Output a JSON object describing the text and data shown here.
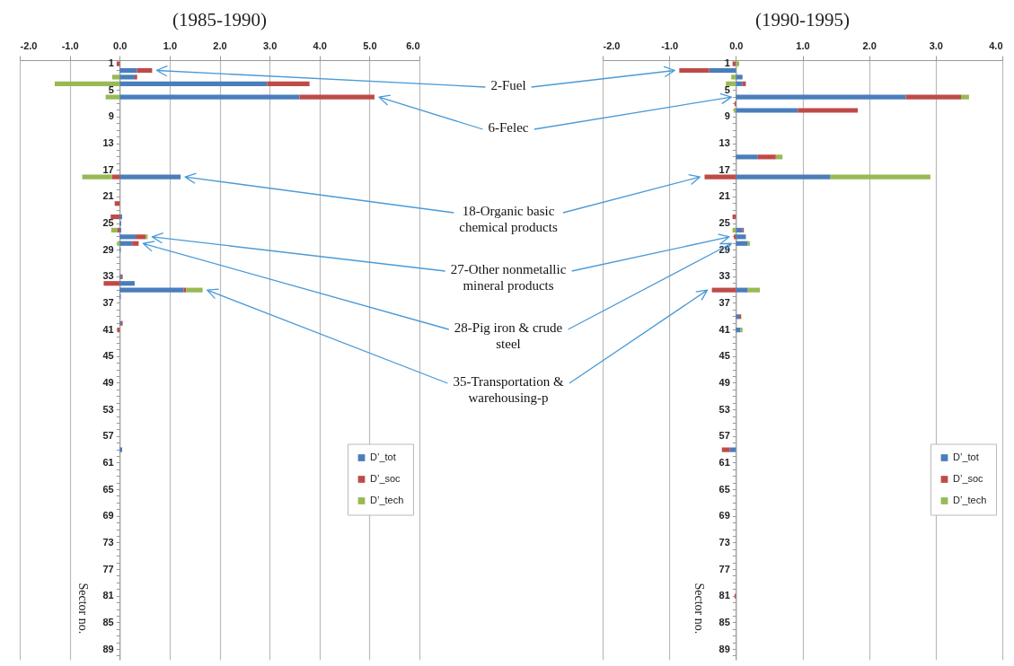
{
  "chart_data": [
    {
      "type": "bar",
      "orientation": "horizontal",
      "stacked": true,
      "title": "(1985-1990)",
      "ylabel": "Sector no.",
      "categories": [
        "1",
        null,
        null,
        null,
        "5",
        null,
        null,
        null,
        "9",
        null,
        null,
        null,
        "13",
        null,
        null,
        null,
        "17",
        null,
        null,
        null,
        "21",
        null,
        null,
        null,
        "25",
        null,
        null,
        null,
        "29",
        null,
        null,
        null,
        "33",
        null,
        null,
        null,
        "37",
        null,
        null,
        null,
        "41",
        null,
        null,
        null,
        "45",
        null,
        null,
        null,
        "49",
        null,
        null,
        null,
        "53",
        null,
        null,
        null,
        "57",
        null,
        null,
        null,
        "61",
        null,
        null,
        null,
        "65",
        null,
        null,
        null,
        "69",
        null,
        null,
        null,
        "73",
        null,
        null,
        null,
        "77",
        null,
        null,
        null,
        "81",
        null,
        null,
        null,
        "85",
        null,
        null,
        null,
        "89",
        null
      ],
      "series": [
        {
          "name": "D’_tot",
          "color": "#4a7ebb",
          "values": [
            null,
            0.35,
            0.3,
            2.95,
            null,
            3.6,
            null,
            null,
            null,
            null,
            null,
            null,
            null,
            null,
            null,
            null,
            null,
            1.22,
            null,
            null,
            null,
            null,
            null,
            0.05,
            0.03,
            0.03,
            0.32,
            0.25,
            0.02,
            null,
            null,
            null,
            0.03,
            0.3,
            1.28,
            0.02,
            null,
            null,
            null,
            0.03,
            null,
            null,
            null,
            null,
            null,
            null,
            null,
            null,
            null,
            null,
            null,
            null,
            null,
            null,
            null,
            null,
            null,
            null,
            0.05,
            null,
            null,
            null,
            null,
            null,
            null,
            null,
            null,
            null,
            null,
            null,
            null,
            null,
            null,
            null,
            null,
            null,
            null,
            null,
            null,
            null,
            null,
            null,
            null,
            null,
            null,
            null,
            null,
            null,
            null,
            null
          ]
        },
        {
          "name": "D’_soc",
          "color": "#be4b48",
          "values": [
            -0.06,
            0.3,
            0.05,
            0.85,
            null,
            1.5,
            null,
            null,
            null,
            null,
            null,
            null,
            null,
            null,
            null,
            null,
            null,
            -0.15,
            null,
            null,
            null,
            -0.1,
            null,
            -0.18,
            null,
            -0.05,
            0.2,
            0.13,
            null,
            null,
            null,
            null,
            0.03,
            -0.32,
            0.05,
            null,
            null,
            null,
            null,
            0.03,
            -0.05,
            null,
            null,
            null,
            null,
            null,
            null,
            null,
            null,
            null,
            null,
            null,
            null,
            null,
            null,
            null,
            null,
            null,
            null,
            null,
            null,
            null,
            null,
            null,
            null,
            null,
            null,
            null,
            null,
            null,
            null,
            null,
            null,
            null,
            null,
            null,
            null,
            null,
            null,
            null,
            null,
            null,
            null,
            null,
            null,
            null,
            null,
            null,
            null,
            null
          ]
        },
        {
          "name": "D’_tech",
          "color": "#98b954",
          "values": [
            null,
            null,
            -0.15,
            -1.3,
            null,
            -0.28,
            null,
            null,
            null,
            null,
            null,
            null,
            null,
            null,
            null,
            null,
            null,
            -0.6,
            null,
            null,
            null,
            null,
            null,
            null,
            null,
            -0.12,
            0.04,
            -0.05,
            null,
            null,
            null,
            null,
            null,
            null,
            0.33,
            null,
            null,
            null,
            null,
            null,
            null,
            null,
            null,
            null,
            null,
            null,
            null,
            null,
            null,
            null,
            null,
            null,
            null,
            null,
            null,
            null,
            null,
            null,
            null,
            null,
            null,
            null,
            null,
            null,
            null,
            null,
            null,
            null,
            null,
            null,
            null,
            null,
            null,
            null,
            null,
            null,
            null,
            null,
            null,
            null,
            null,
            null,
            null,
            null,
            null,
            null,
            null,
            null,
            null,
            null
          ]
        }
      ],
      "xlim": [
        -2,
        6
      ],
      "xticks": [
        {
          "value": -2,
          "label": "-2.0"
        },
        {
          "value": -1,
          "label": "-1.0"
        },
        {
          "value": 0,
          "label": "0.0"
        },
        {
          "value": 1,
          "label": "1.0"
        },
        {
          "value": 2,
          "label": "2.0"
        },
        {
          "value": 3,
          "label": "3.0"
        },
        {
          "value": 4,
          "label": "4.0"
        },
        {
          "value": 5,
          "label": "5.0"
        },
        {
          "value": 6,
          "label": "6.0"
        }
      ],
      "grid": "x",
      "legend": "right",
      "annotations": [
        "2-Fuel",
        "6-Felec",
        "18-Organic basic chemical products",
        "27-Other nonmetallic mineral products",
        "28-Pig iron & crude steel",
        "35-Transportation & warehousing-p"
      ]
    },
    {
      "type": "bar",
      "orientation": "horizontal",
      "stacked": true,
      "title": "(1990-1995)",
      "ylabel": "Sector no.",
      "categories": [
        "1",
        null,
        null,
        null,
        "5",
        null,
        null,
        null,
        "9",
        null,
        null,
        null,
        "13",
        null,
        null,
        null,
        "17",
        null,
        null,
        null,
        "21",
        null,
        null,
        null,
        "25",
        null,
        null,
        null,
        "29",
        null,
        null,
        null,
        "33",
        null,
        null,
        null,
        "37",
        null,
        null,
        null,
        "41",
        null,
        null,
        null,
        "45",
        null,
        null,
        null,
        "49",
        null,
        null,
        null,
        "53",
        null,
        null,
        null,
        "57",
        null,
        null,
        null,
        "61",
        null,
        null,
        null,
        "65",
        null,
        null,
        null,
        "69",
        null,
        null,
        null,
        "73",
        null,
        null,
        null,
        "77",
        null,
        null,
        null,
        "81",
        null,
        null,
        null,
        "85",
        null,
        null,
        null,
        "89",
        null
      ],
      "series": [
        {
          "name": "D’_tot",
          "color": "#4a7ebb",
          "values": [
            null,
            -0.4,
            0.1,
            0.1,
            null,
            2.55,
            null,
            0.93,
            null,
            null,
            null,
            null,
            null,
            null,
            0.33,
            null,
            null,
            1.42,
            null,
            null,
            null,
            null,
            null,
            null,
            null,
            0.1,
            0.15,
            0.18,
            null,
            null,
            null,
            null,
            null,
            null,
            0.18,
            null,
            null,
            null,
            0.05,
            null,
            0.07,
            null,
            null,
            null,
            null,
            null,
            null,
            null,
            null,
            null,
            null,
            null,
            null,
            null,
            null,
            null,
            null,
            null,
            -0.09,
            null,
            null,
            null,
            null,
            null,
            null,
            null,
            null,
            null,
            null,
            null,
            null,
            null,
            null,
            null,
            null,
            null,
            null,
            null,
            null,
            null,
            null,
            null,
            null,
            null,
            null,
            null,
            null,
            null,
            null,
            null
          ]
        },
        {
          "name": "D’_soc",
          "color": "#be4b48",
          "values": [
            -0.05,
            -0.45,
            null,
            0.05,
            null,
            0.83,
            -0.02,
            0.9,
            null,
            null,
            null,
            null,
            null,
            null,
            0.27,
            null,
            null,
            -0.47,
            null,
            null,
            null,
            null,
            null,
            -0.05,
            null,
            0.02,
            -0.03,
            null,
            null,
            null,
            null,
            null,
            null,
            null,
            -0.36,
            null,
            null,
            null,
            0.03,
            null,
            null,
            null,
            null,
            null,
            null,
            null,
            null,
            null,
            null,
            null,
            null,
            null,
            null,
            null,
            null,
            null,
            null,
            null,
            -0.12,
            null,
            null,
            null,
            null,
            null,
            null,
            null,
            null,
            null,
            null,
            null,
            null,
            null,
            null,
            null,
            null,
            null,
            null,
            null,
            null,
            null,
            -0.02,
            null,
            null,
            null,
            null,
            null,
            null,
            null,
            null,
            null
          ]
        },
        {
          "name": "D’_tech",
          "color": "#98b954",
          "values": [
            0.05,
            null,
            -0.07,
            -0.15,
            null,
            0.12,
            null,
            -0.03,
            null,
            null,
            null,
            null,
            null,
            null,
            0.1,
            null,
            null,
            1.5,
            null,
            null,
            null,
            null,
            null,
            null,
            null,
            -0.05,
            null,
            0.03,
            null,
            null,
            null,
            null,
            null,
            null,
            0.18,
            null,
            null,
            null,
            null,
            null,
            0.03,
            null,
            null,
            null,
            null,
            null,
            null,
            null,
            null,
            null,
            null,
            null,
            null,
            null,
            null,
            null,
            null,
            null,
            null,
            null,
            null,
            null,
            null,
            null,
            null,
            null,
            null,
            null,
            null,
            null,
            null,
            null,
            null,
            null,
            null,
            null,
            null,
            null,
            null,
            null,
            null,
            null,
            null,
            null,
            null,
            null,
            null,
            null,
            null,
            null
          ]
        }
      ],
      "xlim": [
        -2,
        4
      ],
      "xticks": [
        {
          "value": -2,
          "label": "-2.0"
        },
        {
          "value": -1,
          "label": "-1.0"
        },
        {
          "value": 0,
          "label": "0.0"
        },
        {
          "value": 1,
          "label": "1.0"
        },
        {
          "value": 2,
          "label": "2.0"
        },
        {
          "value": 3,
          "label": "3.0"
        },
        {
          "value": 4,
          "label": "4.0"
        }
      ],
      "grid": "x",
      "legend": "right"
    }
  ]
}
